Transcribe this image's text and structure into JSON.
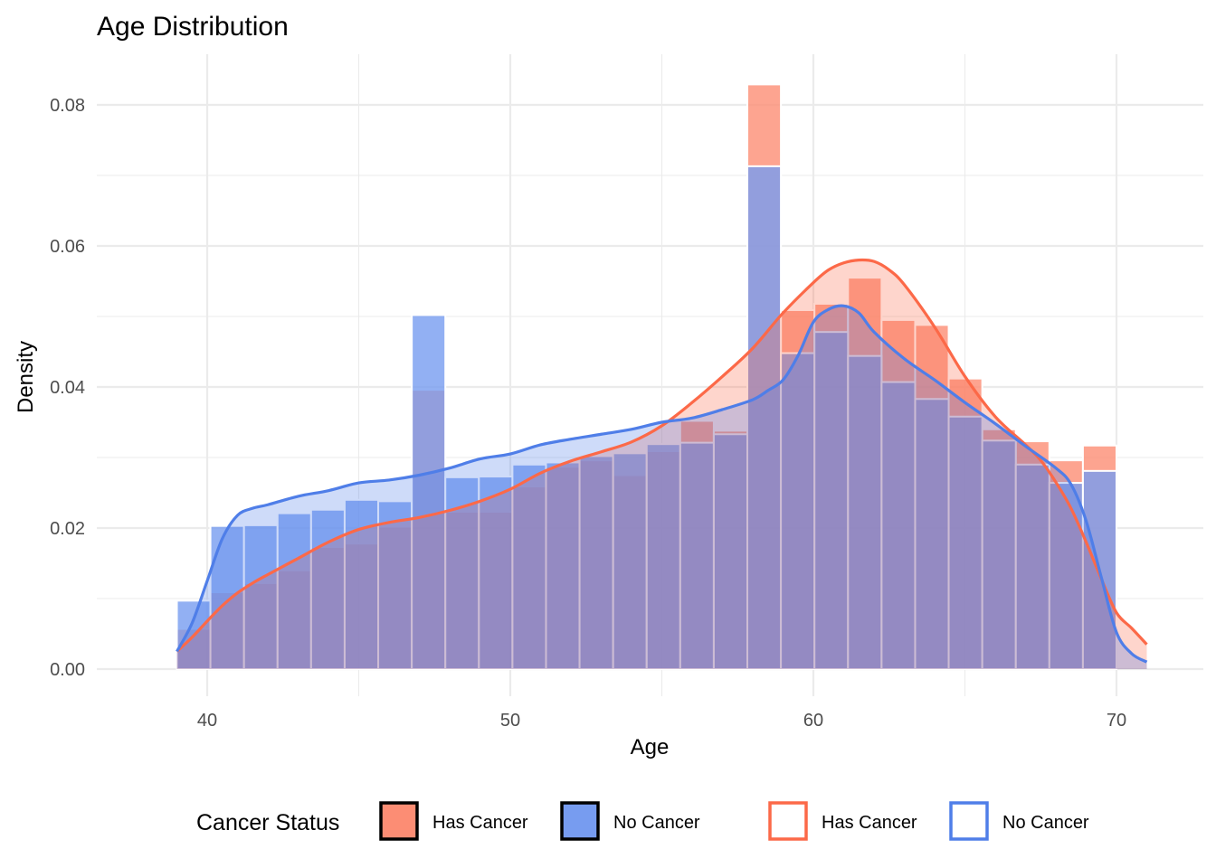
{
  "chart_data": {
    "type": "histogram-density",
    "title": "Age Distribution",
    "xlabel": "Age",
    "ylabel": "Density",
    "xlim": [
      38,
      72
    ],
    "ylim": [
      0,
      0.088
    ],
    "x_ticks": [
      40,
      50,
      60,
      70
    ],
    "x_tick_labels": [
      "40",
      "50",
      "60",
      "70"
    ],
    "y_ticks": [
      0.0,
      0.02,
      0.04,
      0.06,
      0.08
    ],
    "y_tick_labels": [
      "0.00",
      "0.02",
      "0.04",
      "0.06",
      "0.08"
    ],
    "grid": true,
    "bins": {
      "start": 39.0,
      "end": 70.0,
      "count": 28
    },
    "series": [
      {
        "name": "Has Cancer",
        "kind": "histogram",
        "color": "#fc8d74",
        "values": [
          0.0057,
          0.0109,
          0.0122,
          0.014,
          0.0173,
          0.0178,
          0.0202,
          0.0396,
          0.0223,
          0.0223,
          0.0259,
          0.0287,
          0.0296,
          0.0275,
          0.0309,
          0.0352,
          0.0338,
          0.0829,
          0.0509,
          0.0518,
          0.0555,
          0.0495,
          0.0488,
          0.0412,
          0.034,
          0.0323,
          0.0296,
          0.0317
        ]
      },
      {
        "name": "No Cancer",
        "kind": "histogram",
        "color": "#779cf0",
        "values": [
          0.0097,
          0.0203,
          0.0204,
          0.0221,
          0.0226,
          0.024,
          0.0238,
          0.0502,
          0.0272,
          0.0273,
          0.029,
          0.0293,
          0.0302,
          0.0306,
          0.0319,
          0.0321,
          0.0333,
          0.0713,
          0.0448,
          0.0478,
          0.0444,
          0.0407,
          0.0383,
          0.0358,
          0.0324,
          0.029,
          0.0264,
          0.0281
        ]
      },
      {
        "name": "Has Cancer",
        "kind": "density",
        "color": "#fc6948",
        "x": [
          39.0,
          39.5,
          40.0,
          40.5,
          41.0,
          41.5,
          42.0,
          43.0,
          44.0,
          45.0,
          46.0,
          47.0,
          48.0,
          49.0,
          50.0,
          51.0,
          52.0,
          53.0,
          54.0,
          55.0,
          56.0,
          57.0,
          58.0,
          59.0,
          60.0,
          60.5,
          61.0,
          61.5,
          62.0,
          62.5,
          63.0,
          64.0,
          65.0,
          66.0,
          67.0,
          67.5,
          68.0,
          68.5,
          69.0,
          69.5,
          70.0,
          70.5,
          71.0
        ],
        "y": [
          0.0025,
          0.0045,
          0.0068,
          0.009,
          0.0108,
          0.0122,
          0.0134,
          0.0157,
          0.018,
          0.0198,
          0.0208,
          0.0215,
          0.0225,
          0.0238,
          0.0255,
          0.0278,
          0.0295,
          0.0308,
          0.0322,
          0.0345,
          0.0378,
          0.0415,
          0.0455,
          0.0505,
          0.0548,
          0.0566,
          0.0576,
          0.058,
          0.0578,
          0.0566,
          0.0545,
          0.0485,
          0.0415,
          0.0358,
          0.0318,
          0.0296,
          0.0265,
          0.0228,
          0.018,
          0.0128,
          0.008,
          0.0058,
          0.0035
        ]
      },
      {
        "name": "No Cancer",
        "kind": "density",
        "color": "#4f7ee8",
        "x": [
          39.0,
          39.5,
          40.0,
          40.5,
          41.0,
          41.5,
          42.0,
          43.0,
          44.0,
          45.0,
          46.0,
          47.0,
          48.0,
          49.0,
          50.0,
          51.0,
          52.0,
          53.0,
          54.0,
          55.0,
          56.0,
          57.0,
          58.0,
          58.5,
          59.0,
          59.5,
          60.0,
          60.5,
          61.0,
          61.5,
          62.0,
          63.0,
          64.0,
          65.0,
          66.0,
          67.0,
          68.0,
          68.5,
          69.0,
          69.5,
          70.0,
          70.5,
          71.0
        ],
        "y": [
          0.0025,
          0.0065,
          0.0125,
          0.0185,
          0.0218,
          0.0228,
          0.0233,
          0.0245,
          0.0253,
          0.0264,
          0.0268,
          0.0275,
          0.0285,
          0.0298,
          0.0305,
          0.0318,
          0.0326,
          0.0333,
          0.034,
          0.035,
          0.0356,
          0.0368,
          0.0382,
          0.0395,
          0.041,
          0.0445,
          0.0492,
          0.051,
          0.0515,
          0.0505,
          0.0478,
          0.044,
          0.041,
          0.0378,
          0.0348,
          0.0316,
          0.0285,
          0.0262,
          0.021,
          0.013,
          0.0052,
          0.0022,
          0.001
        ]
      }
    ],
    "legend": {
      "position": "bottom",
      "title": "Cancer Status",
      "entries": [
        {
          "label": "Has Cancer",
          "kind": "fill",
          "color": "#fc8d74",
          "border": "#000000"
        },
        {
          "label": "No Cancer",
          "kind": "fill",
          "color": "#779cf0",
          "border": "#000000"
        },
        {
          "label": "Has Cancer",
          "kind": "line",
          "color": "#fc6948"
        },
        {
          "label": "No Cancer",
          "kind": "line",
          "color": "#4f7ee8"
        }
      ]
    }
  }
}
